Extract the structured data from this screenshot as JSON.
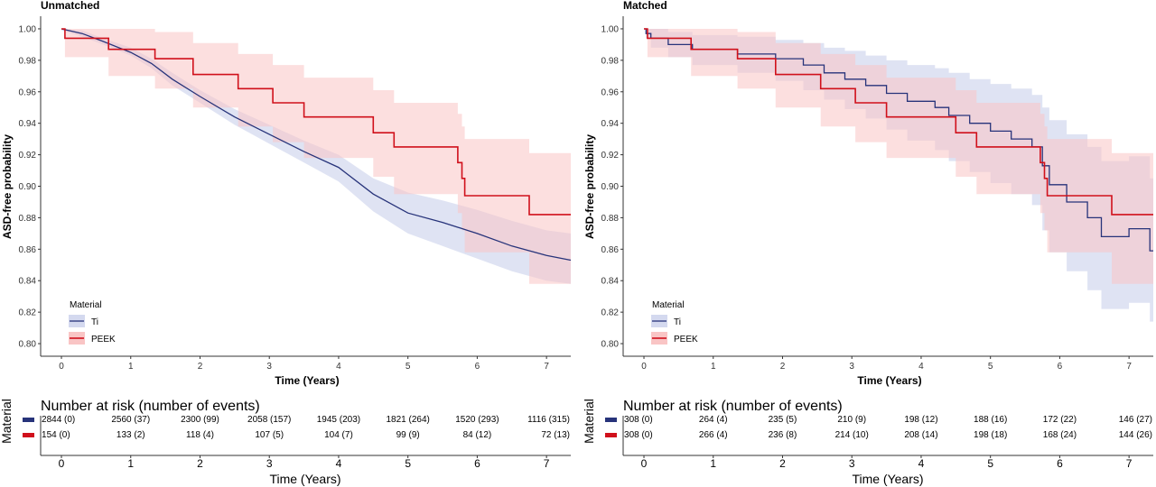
{
  "colors": {
    "ti": "#27337a",
    "peek": "#d0101b",
    "ti_band": "#d4d9ef",
    "peek_band": "#f9c5c5"
  },
  "chart_data": [
    {
      "type": "line",
      "title": "Unmatched",
      "xlabel": "Time (Years)",
      "ylabel": "ASD-free probability",
      "xlim": [
        -0.3,
        7.35
      ],
      "ylim": [
        0.792,
        1.008
      ],
      "x_ticks": [
        0,
        1,
        2,
        3,
        4,
        5,
        6,
        7
      ],
      "y_ticks": [
        "1.00",
        "0.98",
        "0.96",
        "0.94",
        "0.92",
        "0.90",
        "0.88",
        "0.86",
        "0.84",
        "0.82",
        "0.80"
      ],
      "legend": {
        "title": "Material",
        "placement": "bottom-left",
        "entries": [
          "Ti",
          "PEEK"
        ]
      },
      "series": [
        {
          "name": "Ti",
          "color_key": "ti",
          "step": false,
          "x": [
            0,
            0.3,
            0.6,
            1.0,
            1.3,
            1.6,
            2.0,
            2.5,
            3.0,
            3.5,
            4.0,
            4.5,
            5.0,
            5.5,
            6.0,
            6.5,
            7.0,
            7.35
          ],
          "y": [
            1.0,
            0.997,
            0.992,
            0.985,
            0.978,
            0.968,
            0.957,
            0.944,
            0.933,
            0.922,
            0.912,
            0.895,
            0.883,
            0.877,
            0.87,
            0.862,
            0.856,
            0.853
          ],
          "lower": [
            0.999,
            0.995,
            0.99,
            0.983,
            0.975,
            0.964,
            0.953,
            0.939,
            0.927,
            0.915,
            0.903,
            0.884,
            0.87,
            0.862,
            0.854,
            0.846,
            0.84,
            0.838
          ],
          "upper": [
            1.0,
            0.999,
            0.994,
            0.988,
            0.981,
            0.972,
            0.961,
            0.949,
            0.939,
            0.929,
            0.92,
            0.905,
            0.896,
            0.891,
            0.885,
            0.878,
            0.872,
            0.87
          ]
        },
        {
          "name": "PEEK",
          "color_key": "peek",
          "step": true,
          "x": [
            0,
            0.05,
            0.68,
            1.35,
            1.9,
            2.55,
            3.05,
            3.5,
            4.5,
            4.8,
            5.72,
            5.78,
            5.82,
            6.75,
            7.35
          ],
          "y": [
            1.0,
            0.994,
            0.987,
            0.981,
            0.971,
            0.962,
            0.953,
            0.944,
            0.934,
            0.925,
            0.915,
            0.905,
            0.894,
            0.882,
            0.882
          ],
          "lower": [
            1.0,
            0.982,
            0.97,
            0.962,
            0.95,
            0.938,
            0.928,
            0.918,
            0.906,
            0.895,
            0.883,
            0.872,
            0.858,
            0.838,
            0.822
          ],
          "upper": [
            1.0,
            1.0,
            1.0,
            0.998,
            0.991,
            0.984,
            0.977,
            0.969,
            0.961,
            0.953,
            0.946,
            0.938,
            0.93,
            0.921,
            0.946
          ]
        }
      ],
      "risk_table": {
        "title": "Number at risk (number of events)",
        "side_label": "Material",
        "xlabel": "Time (Years)",
        "rows": [
          {
            "color_key": "ti",
            "values": [
              "2844 (0)",
              "2560 (37)",
              "2300 (99)",
              "2058 (157)",
              "1945 (203)",
              "1821 (264)",
              "1520 (293)",
              "1116 (315)"
            ]
          },
          {
            "color_key": "peek",
            "values": [
              "154 (0)",
              "133 (2)",
              "118 (4)",
              "107 (5)",
              "104 (7)",
              "99 (9)",
              "84 (12)",
              "72 (13)"
            ]
          }
        ]
      }
    },
    {
      "type": "line",
      "title": "Matched",
      "xlabel": "Time (Years)",
      "ylabel": "ASD-free probability",
      "xlim": [
        -0.3,
        7.35
      ],
      "ylim": [
        0.792,
        1.008
      ],
      "x_ticks": [
        0,
        1,
        2,
        3,
        4,
        5,
        6,
        7
      ],
      "y_ticks": [
        "1.00",
        "0.98",
        "0.96",
        "0.94",
        "0.92",
        "0.90",
        "0.88",
        "0.86",
        "0.84",
        "0.82",
        "0.80"
      ],
      "legend": {
        "title": "Material",
        "placement": "bottom-left",
        "entries": [
          "Ti",
          "PEEK"
        ]
      },
      "series": [
        {
          "name": "Ti",
          "color_key": "ti",
          "step": true,
          "x": [
            0,
            0.03,
            0.1,
            0.35,
            0.7,
            1.35,
            1.9,
            2.3,
            2.6,
            2.9,
            3.2,
            3.5,
            3.8,
            4.2,
            4.4,
            4.7,
            5.0,
            5.3,
            5.6,
            5.75,
            5.85,
            6.1,
            6.4,
            6.6,
            7.0,
            7.3,
            7.35
          ],
          "y": [
            1.0,
            0.997,
            0.994,
            0.99,
            0.987,
            0.984,
            0.981,
            0.977,
            0.972,
            0.968,
            0.964,
            0.959,
            0.954,
            0.95,
            0.945,
            0.94,
            0.935,
            0.93,
            0.925,
            0.913,
            0.901,
            0.89,
            0.88,
            0.868,
            0.873,
            0.859,
            0.859
          ],
          "lower": [
            1.0,
            0.994,
            0.988,
            0.982,
            0.977,
            0.972,
            0.967,
            0.961,
            0.955,
            0.949,
            0.943,
            0.936,
            0.929,
            0.923,
            0.916,
            0.909,
            0.902,
            0.895,
            0.888,
            0.872,
            0.858,
            0.846,
            0.834,
            0.822,
            0.826,
            0.814,
            0.814
          ],
          "upper": [
            1.0,
            1.0,
            1.0,
            0.998,
            0.996,
            0.995,
            0.993,
            0.991,
            0.988,
            0.986,
            0.983,
            0.98,
            0.977,
            0.975,
            0.972,
            0.968,
            0.965,
            0.962,
            0.958,
            0.95,
            0.942,
            0.933,
            0.925,
            0.916,
            0.919,
            0.905,
            0.905
          ]
        },
        {
          "name": "PEEK",
          "color_key": "peek",
          "step": true,
          "x": [
            0,
            0.05,
            0.68,
            1.35,
            1.9,
            2.55,
            3.05,
            3.5,
            4.5,
            4.8,
            5.72,
            5.78,
            5.82,
            6.75,
            7.35
          ],
          "y": [
            1.0,
            0.994,
            0.987,
            0.981,
            0.971,
            0.962,
            0.953,
            0.944,
            0.934,
            0.925,
            0.915,
            0.905,
            0.894,
            0.882,
            0.882
          ],
          "lower": [
            1.0,
            0.982,
            0.97,
            0.962,
            0.95,
            0.938,
            0.928,
            0.918,
            0.906,
            0.895,
            0.883,
            0.872,
            0.858,
            0.838,
            0.822
          ],
          "upper": [
            1.0,
            1.0,
            1.0,
            0.998,
            0.991,
            0.984,
            0.977,
            0.969,
            0.961,
            0.953,
            0.946,
            0.938,
            0.93,
            0.921,
            0.946
          ]
        }
      ],
      "risk_table": {
        "title": "Number at risk (number of events)",
        "side_label": "Material",
        "xlabel": "Time (Years)",
        "rows": [
          {
            "color_key": "ti",
            "values": [
              "308 (0)",
              "264 (4)",
              "235 (5)",
              "210 (9)",
              "198 (12)",
              "188 (16)",
              "172 (22)",
              "146 (27)"
            ]
          },
          {
            "color_key": "peek",
            "values": [
              "308 (0)",
              "266 (4)",
              "236 (8)",
              "214 (10)",
              "208 (14)",
              "198 (18)",
              "168 (24)",
              "144 (26)"
            ]
          }
        ]
      }
    }
  ]
}
